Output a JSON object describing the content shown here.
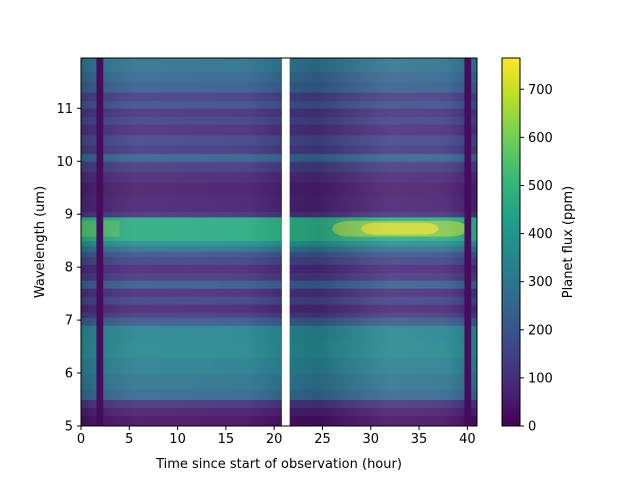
{
  "chart_data": {
    "type": "heatmap",
    "title": "",
    "xlabel": "Time since start of observation (hour)",
    "ylabel": "Wavelength (um)",
    "xlim": [
      0,
      41
    ],
    "ylim": [
      5,
      11.95
    ],
    "x_ticks": [
      0,
      5,
      10,
      15,
      20,
      25,
      30,
      35,
      40
    ],
    "y_ticks": [
      5,
      6,
      7,
      8,
      9,
      10,
      11
    ],
    "colorbar": {
      "label": "Planet flux (ppm)",
      "colormap": "viridis",
      "range": [
        0,
        765
      ],
      "ticks": [
        0,
        100,
        200,
        300,
        400,
        500,
        600,
        700
      ]
    },
    "gaps": [
      {
        "x_start": 20.8,
        "x_end": 21.6,
        "note": "no data"
      }
    ],
    "low_flux_columns": [
      {
        "x_start": 1.6,
        "x_end": 2.3
      },
      {
        "x_start": 39.7,
        "x_end": 40.4
      }
    ],
    "wavelength_bands": [
      {
        "y_start": 5.0,
        "y_end": 5.2,
        "flux": 30
      },
      {
        "y_start": 5.2,
        "y_end": 5.35,
        "flux": 60
      },
      {
        "y_start": 5.35,
        "y_end": 5.5,
        "flux": 110
      },
      {
        "y_start": 5.5,
        "y_end": 5.7,
        "flux": 250
      },
      {
        "y_start": 5.7,
        "y_end": 6.0,
        "flux": 295
      },
      {
        "y_start": 6.0,
        "y_end": 6.3,
        "flux": 330
      },
      {
        "y_start": 6.3,
        "y_end": 6.6,
        "flux": 355
      },
      {
        "y_start": 6.6,
        "y_end": 6.9,
        "flux": 345
      },
      {
        "y_start": 6.9,
        "y_end": 7.05,
        "flux": 215
      },
      {
        "y_start": 7.05,
        "y_end": 7.15,
        "flux": 130
      },
      {
        "y_start": 7.15,
        "y_end": 7.3,
        "flux": 80
      },
      {
        "y_start": 7.3,
        "y_end": 7.45,
        "flux": 150
      },
      {
        "y_start": 7.45,
        "y_end": 7.6,
        "flux": 95
      },
      {
        "y_start": 7.6,
        "y_end": 7.75,
        "flux": 225
      },
      {
        "y_start": 7.75,
        "y_end": 7.9,
        "flux": 120
      },
      {
        "y_start": 7.9,
        "y_end": 8.05,
        "flux": 85
      },
      {
        "y_start": 8.05,
        "y_end": 8.2,
        "flux": 150
      },
      {
        "y_start": 8.2,
        "y_end": 8.3,
        "flux": 200
      },
      {
        "y_start": 8.3,
        "y_end": 8.4,
        "flux": 280
      },
      {
        "y_start": 8.4,
        "y_end": 8.5,
        "flux": 380
      },
      {
        "y_start": 8.5,
        "y_end": 8.95,
        "flux": 470
      },
      {
        "y_start": 8.95,
        "y_end": 9.05,
        "flux": 110
      },
      {
        "y_start": 9.05,
        "y_end": 9.35,
        "flux": 70
      },
      {
        "y_start": 9.35,
        "y_end": 9.6,
        "flux": 60
      },
      {
        "y_start": 9.6,
        "y_end": 9.8,
        "flux": 80
      },
      {
        "y_start": 9.8,
        "y_end": 10.0,
        "flux": 130
      },
      {
        "y_start": 10.0,
        "y_end": 10.15,
        "flux": 240
      },
      {
        "y_start": 10.15,
        "y_end": 10.3,
        "flux": 120
      },
      {
        "y_start": 10.3,
        "y_end": 10.5,
        "flux": 160
      },
      {
        "y_start": 10.5,
        "y_end": 10.7,
        "flux": 100
      },
      {
        "y_start": 10.7,
        "y_end": 10.85,
        "flux": 150
      },
      {
        "y_start": 10.85,
        "y_end": 11.0,
        "flux": 110
      },
      {
        "y_start": 11.0,
        "y_end": 11.15,
        "flux": 180
      },
      {
        "y_start": 11.15,
        "y_end": 11.3,
        "flux": 140
      },
      {
        "y_start": 11.3,
        "y_end": 11.5,
        "flux": 220
      },
      {
        "y_start": 11.5,
        "y_end": 11.7,
        "flux": 250
      },
      {
        "y_start": 11.7,
        "y_end": 11.95,
        "flux": 290
      }
    ]
  }
}
